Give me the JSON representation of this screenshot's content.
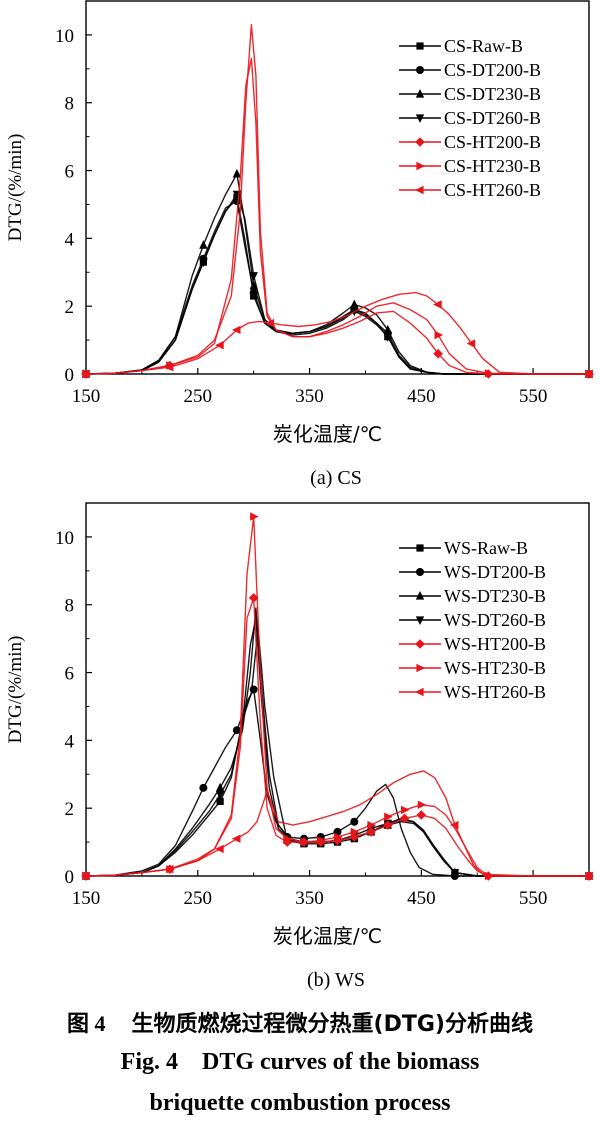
{
  "chart_data": [
    {
      "type": "line",
      "panel_label": "(a) CS",
      "xlabel": "炭化温度/℃",
      "ylabel": "DTG/(%/min)",
      "xlim": [
        150,
        600
      ],
      "ylim": [
        0,
        11
      ],
      "xticks": [
        "150",
        "250",
        "350",
        "450",
        "550"
      ],
      "yticks": [
        "0",
        "2",
        "4",
        "6",
        "8",
        "10"
      ],
      "legend_position": "top-right",
      "series": [
        {
          "name": "CS-Raw-B",
          "color": "#000000",
          "marker": "square",
          "x": [
            150,
            175,
            200,
            215,
            230,
            245,
            255,
            265,
            275,
            285,
            292,
            300,
            310,
            320,
            335,
            350,
            365,
            380,
            390,
            400,
            410,
            420,
            430,
            440,
            455,
            470,
            500,
            550,
            600
          ],
          "y": [
            0,
            0.02,
            0.1,
            0.35,
            1.0,
            2.5,
            3.3,
            4.1,
            4.8,
            5.2,
            4.0,
            2.3,
            1.5,
            1.25,
            1.2,
            1.25,
            1.4,
            1.65,
            1.9,
            1.75,
            1.5,
            1.1,
            0.5,
            0.15,
            0.05,
            0,
            0,
            0,
            0
          ]
        },
        {
          "name": "CS-DT200-B",
          "color": "#000000",
          "marker": "circle",
          "x": [
            150,
            175,
            200,
            215,
            230,
            245,
            255,
            265,
            275,
            285,
            292,
            300,
            310,
            320,
            335,
            350,
            365,
            380,
            390,
            400,
            410,
            420,
            430,
            440,
            455,
            470,
            500,
            550,
            600
          ],
          "y": [
            0,
            0.02,
            0.12,
            0.4,
            1.1,
            2.6,
            3.4,
            4.2,
            4.9,
            5.1,
            3.8,
            2.4,
            1.5,
            1.25,
            1.2,
            1.25,
            1.4,
            1.7,
            1.9,
            1.8,
            1.5,
            1.2,
            0.55,
            0.2,
            0.05,
            0,
            0,
            0,
            0
          ]
        },
        {
          "name": "CS-DT230-B",
          "color": "#000000",
          "marker": "triangle-up",
          "x": [
            150,
            175,
            200,
            215,
            230,
            245,
            255,
            265,
            275,
            285,
            292,
            300,
            310,
            320,
            335,
            350,
            365,
            380,
            390,
            400,
            410,
            420,
            430,
            440,
            455,
            470,
            500,
            550,
            600
          ],
          "y": [
            0,
            0.02,
            0.12,
            0.4,
            1.1,
            2.9,
            3.8,
            4.6,
            5.3,
            5.9,
            4.5,
            2.6,
            1.6,
            1.3,
            1.2,
            1.25,
            1.45,
            1.8,
            2.05,
            1.95,
            1.75,
            1.3,
            0.65,
            0.25,
            0.05,
            0,
            0,
            0,
            0
          ]
        },
        {
          "name": "CS-DT260-B",
          "color": "#000000",
          "marker": "triangle-down",
          "x": [
            150,
            175,
            200,
            215,
            230,
            245,
            255,
            265,
            275,
            285,
            292,
            300,
            310,
            320,
            335,
            350,
            365,
            380,
            390,
            400,
            410,
            420,
            430,
            440,
            455,
            470,
            500,
            550,
            600
          ],
          "y": [
            0,
            0.02,
            0.1,
            0.35,
            1.0,
            2.5,
            3.3,
            4.1,
            4.8,
            5.3,
            4.6,
            2.9,
            1.6,
            1.25,
            1.15,
            1.2,
            1.35,
            1.6,
            1.85,
            1.7,
            1.45,
            1.1,
            0.5,
            0.15,
            0.05,
            0,
            0,
            0,
            0
          ]
        },
        {
          "name": "CS-HT200-B",
          "color": "#e8141b",
          "marker": "diamond",
          "x": [
            150,
            175,
            200,
            225,
            250,
            265,
            280,
            288,
            293,
            298,
            302,
            306,
            312,
            320,
            335,
            350,
            365,
            380,
            395,
            410,
            425,
            440,
            455,
            465,
            475,
            490,
            510,
            550,
            600
          ],
          "y": [
            0,
            0.02,
            0.1,
            0.25,
            0.55,
            1.0,
            2.3,
            4.8,
            8.0,
            10.3,
            8.8,
            4.2,
            1.8,
            1.3,
            1.1,
            1.1,
            1.2,
            1.35,
            1.55,
            1.8,
            1.85,
            1.5,
            1.05,
            0.6,
            0.25,
            0.05,
            0,
            0,
            0
          ]
        },
        {
          "name": "CS-HT230-B",
          "color": "#e8141b",
          "marker": "triangle-right",
          "x": [
            150,
            175,
            200,
            225,
            250,
            265,
            280,
            288,
            293,
            298,
            302,
            306,
            312,
            320,
            335,
            350,
            365,
            380,
            395,
            410,
            425,
            440,
            455,
            465,
            475,
            490,
            510,
            550,
            600
          ],
          "y": [
            0,
            0.02,
            0.1,
            0.25,
            0.5,
            0.9,
            2.8,
            5.8,
            8.5,
            9.3,
            7.4,
            3.6,
            1.7,
            1.3,
            1.1,
            1.1,
            1.25,
            1.45,
            1.7,
            2.0,
            2.1,
            1.9,
            1.6,
            1.15,
            0.6,
            0.15,
            0.02,
            0,
            0
          ]
        },
        {
          "name": "CS-HT260-B",
          "color": "#e8141b",
          "marker": "triangle-left",
          "x": [
            150,
            175,
            200,
            225,
            250,
            270,
            285,
            295,
            305,
            315,
            325,
            340,
            355,
            370,
            385,
            400,
            415,
            430,
            445,
            455,
            465,
            475,
            485,
            495,
            505,
            520,
            550,
            600
          ],
          "y": [
            0,
            0.02,
            0.1,
            0.2,
            0.45,
            0.85,
            1.3,
            1.5,
            1.55,
            1.5,
            1.45,
            1.4,
            1.45,
            1.55,
            1.75,
            2.0,
            2.2,
            2.35,
            2.4,
            2.3,
            2.05,
            1.75,
            1.35,
            0.9,
            0.45,
            0.05,
            0,
            0
          ]
        }
      ]
    },
    {
      "type": "line",
      "panel_label": "(b) WS",
      "xlabel": "炭化温度/℃",
      "ylabel": "DTG/(%/min)",
      "xlim": [
        150,
        600
      ],
      "ylim": [
        0,
        11
      ],
      "xticks": [
        "150",
        "250",
        "350",
        "450",
        "550"
      ],
      "yticks": [
        "0",
        "2",
        "4",
        "6",
        "8",
        "10"
      ],
      "legend_position": "top-right",
      "series": [
        {
          "name": "WS-Raw-B",
          "color": "#000000",
          "marker": "square",
          "x": [
            150,
            175,
            200,
            215,
            230,
            245,
            260,
            270,
            280,
            290,
            298,
            304,
            310,
            318,
            330,
            345,
            360,
            375,
            390,
            405,
            420,
            432,
            443,
            452,
            460,
            470,
            480,
            500,
            550,
            600
          ],
          "y": [
            0,
            0.02,
            0.1,
            0.3,
            0.7,
            1.2,
            1.8,
            2.2,
            2.9,
            4.6,
            5.4,
            7.3,
            5.0,
            2.9,
            1.05,
            0.95,
            0.95,
            1.0,
            1.1,
            1.3,
            1.55,
            1.7,
            1.6,
            1.3,
            0.9,
            0.45,
            0.1,
            0,
            0,
            0
          ]
        },
        {
          "name": "WS-DT200-B",
          "color": "#000000",
          "marker": "circle",
          "x": [
            150,
            175,
            200,
            215,
            230,
            245,
            255,
            265,
            275,
            285,
            295,
            300,
            306,
            312,
            320,
            330,
            345,
            360,
            375,
            390,
            400,
            410,
            418,
            425,
            432,
            440,
            448,
            460,
            480,
            550,
            600
          ],
          "y": [
            0,
            0.02,
            0.15,
            0.35,
            0.9,
            1.9,
            2.6,
            3.2,
            3.8,
            4.3,
            5.2,
            5.5,
            4.0,
            2.4,
            1.6,
            1.15,
            1.1,
            1.15,
            1.3,
            1.6,
            2.0,
            2.5,
            2.7,
            2.3,
            1.4,
            0.7,
            0.25,
            0.05,
            0,
            0,
            0
          ]
        },
        {
          "name": "WS-DT230-B",
          "color": "#000000",
          "marker": "triangle-up",
          "x": [
            150,
            175,
            200,
            215,
            230,
            245,
            260,
            270,
            280,
            290,
            297,
            302,
            307,
            314,
            322,
            332,
            345,
            360,
            375,
            390,
            405,
            420,
            432,
            443,
            452,
            460,
            470,
            480,
            500,
            550,
            600
          ],
          "y": [
            0,
            0.02,
            0.1,
            0.3,
            0.8,
            1.4,
            2.1,
            2.6,
            3.2,
            4.3,
            6.0,
            7.9,
            5.6,
            3.0,
            1.5,
            1.1,
            1.0,
            1.0,
            1.05,
            1.15,
            1.3,
            1.5,
            1.6,
            1.55,
            1.3,
            0.9,
            0.45,
            0.1,
            0,
            0,
            0
          ]
        },
        {
          "name": "WS-DT260-B",
          "color": "#000000",
          "marker": "triangle-down",
          "x": [
            150,
            175,
            200,
            215,
            230,
            245,
            260,
            270,
            280,
            290,
            297,
            302,
            307,
            314,
            322,
            332,
            345,
            360,
            375,
            390,
            405,
            420,
            432,
            443,
            452,
            460,
            470,
            480,
            500,
            550,
            600
          ],
          "y": [
            0,
            0.02,
            0.1,
            0.3,
            0.75,
            1.3,
            1.9,
            2.4,
            3.0,
            4.5,
            6.8,
            7.6,
            5.2,
            2.6,
            1.4,
            1.05,
            1.0,
            1.0,
            1.05,
            1.2,
            1.4,
            1.55,
            1.65,
            1.6,
            1.35,
            0.95,
            0.5,
            0.1,
            0,
            0,
            0
          ]
        },
        {
          "name": "WS-HT200-B",
          "color": "#e8141b",
          "marker": "diamond",
          "x": [
            150,
            175,
            200,
            225,
            250,
            265,
            280,
            288,
            294,
            300,
            306,
            312,
            320,
            330,
            345,
            360,
            375,
            390,
            405,
            420,
            435,
            450,
            462,
            472,
            482,
            492,
            500,
            510,
            550,
            600
          ],
          "y": [
            0,
            0.02,
            0.1,
            0.2,
            0.5,
            0.8,
            1.7,
            3.8,
            7.6,
            8.2,
            4.5,
            2.0,
            1.2,
            1.0,
            1.0,
            1.0,
            1.05,
            1.15,
            1.3,
            1.5,
            1.7,
            1.8,
            1.7,
            1.4,
            0.9,
            0.45,
            0.15,
            0,
            0,
            0
          ]
        },
        {
          "name": "WS-HT230-B",
          "color": "#e8141b",
          "marker": "triangle-right",
          "x": [
            150,
            175,
            200,
            225,
            250,
            265,
            280,
            288,
            294,
            300,
            306,
            312,
            320,
            330,
            345,
            360,
            375,
            390,
            405,
            420,
            435,
            450,
            462,
            472,
            482,
            492,
            500,
            510,
            550,
            600
          ],
          "y": [
            0,
            0.02,
            0.1,
            0.2,
            0.45,
            0.8,
            1.8,
            4.2,
            8.9,
            10.6,
            6.0,
            2.6,
            1.4,
            1.1,
            1.0,
            1.05,
            1.15,
            1.3,
            1.5,
            1.75,
            1.95,
            2.1,
            2.05,
            1.8,
            1.3,
            0.7,
            0.25,
            0,
            0,
            0
          ]
        },
        {
          "name": "WS-HT260-B",
          "color": "#e8141b",
          "marker": "triangle-left",
          "x": [
            150,
            175,
            200,
            225,
            250,
            270,
            285,
            295,
            303,
            312,
            322,
            335,
            350,
            365,
            380,
            395,
            410,
            425,
            440,
            452,
            462,
            472,
            480,
            490,
            497,
            505,
            550,
            600
          ],
          "y": [
            0,
            0.02,
            0.1,
            0.2,
            0.45,
            0.8,
            1.1,
            1.3,
            1.6,
            2.5,
            1.6,
            1.5,
            1.6,
            1.75,
            1.9,
            2.1,
            2.4,
            2.75,
            3.0,
            3.1,
            2.9,
            2.3,
            1.5,
            0.8,
            0.3,
            0.05,
            0,
            0
          ]
        }
      ]
    }
  ],
  "caption": {
    "cn_fig": "图 4",
    "cn_text": "生物质燃烧过程微分热重(DTG)分析曲线",
    "en_line1": "Fig. 4    DTG curves of the biomass",
    "en_line2": "briquette combustion process"
  }
}
